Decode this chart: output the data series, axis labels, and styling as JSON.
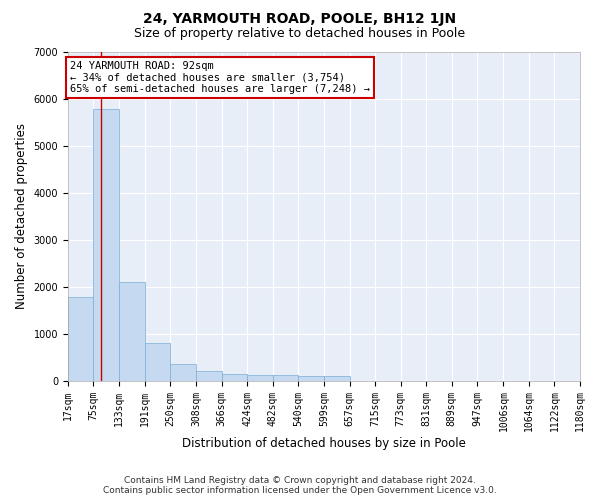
{
  "title": "24, YARMOUTH ROAD, POOLE, BH12 1JN",
  "subtitle": "Size of property relative to detached houses in Poole",
  "xlabel": "Distribution of detached houses by size in Poole",
  "ylabel": "Number of detached properties",
  "footer_line1": "Contains HM Land Registry data © Crown copyright and database right 2024.",
  "footer_line2": "Contains public sector information licensed under the Open Government Licence v3.0.",
  "bin_labels": [
    "17sqm",
    "75sqm",
    "133sqm",
    "191sqm",
    "250sqm",
    "308sqm",
    "366sqm",
    "424sqm",
    "482sqm",
    "540sqm",
    "599sqm",
    "657sqm",
    "715sqm",
    "773sqm",
    "831sqm",
    "889sqm",
    "947sqm",
    "1006sqm",
    "1064sqm",
    "1122sqm",
    "1180sqm"
  ],
  "bar_heights": [
    1780,
    5780,
    2090,
    800,
    350,
    200,
    130,
    110,
    110,
    90,
    90,
    0,
    0,
    0,
    0,
    0,
    0,
    0,
    0,
    0
  ],
  "bar_color": "#c5d9f0",
  "bar_edge_color": "#7aadd4",
  "property_size": 92,
  "red_line_color": "#cc0000",
  "annotation_line1": "24 YARMOUTH ROAD: 92sqm",
  "annotation_line2": "← 34% of detached houses are smaller (3,754)",
  "annotation_line3": "65% of semi-detached houses are larger (7,248) →",
  "annotation_box_color": "#cc0000",
  "ylim": [
    0,
    7000
  ],
  "yticks": [
    0,
    1000,
    2000,
    3000,
    4000,
    5000,
    6000,
    7000
  ],
  "background_color": "#dde8f5",
  "plot_bg_color": "#e8eef8",
  "grid_color": "#ffffff",
  "title_fontsize": 10,
  "subtitle_fontsize": 9,
  "axis_label_fontsize": 8.5,
  "tick_fontsize": 7,
  "footer_fontsize": 6.5,
  "annotation_fontsize": 7.5
}
